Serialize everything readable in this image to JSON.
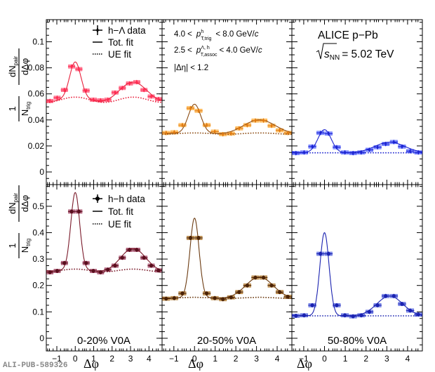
{
  "figure_id": "ALI-PUB-589326",
  "chart_data": [
    {
      "type": "scatter",
      "panel": "top-left",
      "series_label": "h-Λ data",
      "centrality": "",
      "color": "#ff2a50",
      "fit_color": "#e8203c",
      "box_color": "#ff5a7a",
      "x": [
        -1.374,
        -0.982,
        -0.589,
        -0.196,
        0.196,
        0.589,
        0.982,
        1.374,
        1.767,
        2.16,
        2.553,
        2.945,
        3.338,
        3.731,
        4.123,
        4.516
      ],
      "values": [
        0.0545,
        0.057,
        0.063,
        0.081,
        0.079,
        0.0625,
        0.0555,
        0.055,
        0.0555,
        0.061,
        0.0645,
        0.068,
        0.069,
        0.063,
        0.058,
        0.056
      ],
      "ue_level": 0.0555,
      "ue_amp": 0.002,
      "ns_amp": 0.027,
      "ns_sigma": 0.3,
      "as_amp": 0.0115,
      "as_sigma": 0.75,
      "ylim": [
        -0.0097,
        0.117
      ],
      "yticks": [
        0,
        0.02,
        0.04,
        0.06,
        0.08,
        0.1
      ],
      "ytick_labels": [
        "0",
        "0.02",
        "0.04",
        "0.06",
        "0.08",
        "0.1"
      ]
    },
    {
      "type": "scatter",
      "panel": "top-middle",
      "series_label": "h-Λ data",
      "centrality": "",
      "color": "#e07a10",
      "fit_color": "#8b4a10",
      "box_color": "#ffb040",
      "x": [
        -1.374,
        -0.982,
        -0.589,
        -0.196,
        0.196,
        0.589,
        0.982,
        1.374,
        1.767,
        2.16,
        2.553,
        2.945,
        3.338,
        3.731,
        4.123,
        4.516
      ],
      "values": [
        0.03,
        0.0305,
        0.036,
        0.049,
        0.047,
        0.036,
        0.031,
        0.029,
        0.0295,
        0.0335,
        0.036,
        0.0395,
        0.0395,
        0.0355,
        0.032,
        0.03
      ],
      "ue_level": 0.0295,
      "ue_amp": 0.0005,
      "ns_amp": 0.022,
      "ns_sigma": 0.3,
      "as_amp": 0.01,
      "as_sigma": 0.78,
      "ylim": [
        -0.0097,
        0.117
      ],
      "yticks": [
        0,
        0.02,
        0.04,
        0.06,
        0.08,
        0.1
      ],
      "ytick_labels": []
    },
    {
      "type": "scatter",
      "panel": "top-right",
      "series_label": "h-Λ data",
      "centrality": "",
      "color": "#1a22d0",
      "fit_color": "#1a22d0",
      "box_color": "#5a6aff",
      "x": [
        -1.374,
        -0.982,
        -0.589,
        -0.196,
        0.196,
        0.589,
        0.982,
        1.374,
        1.767,
        2.16,
        2.553,
        2.945,
        3.338,
        3.731,
        4.123,
        4.516
      ],
      "values": [
        0.0145,
        0.015,
        0.0195,
        0.03,
        0.0295,
        0.019,
        0.015,
        0.0145,
        0.015,
        0.017,
        0.019,
        0.0215,
        0.023,
        0.0195,
        0.016,
        0.015
      ],
      "ue_level": 0.0147,
      "ue_amp": 0.0,
      "ns_amp": 0.0178,
      "ns_sigma": 0.32,
      "as_amp": 0.0082,
      "as_sigma": 0.72,
      "ylim": [
        -0.0097,
        0.117
      ],
      "yticks": [
        0,
        0.02,
        0.04,
        0.06,
        0.08,
        0.1
      ],
      "ytick_labels": []
    },
    {
      "type": "scatter",
      "panel": "bottom-left",
      "series_label": "h-h data",
      "centrality": "0-20% V0A",
      "color": "#5a0f1e",
      "fit_color": "#7a1a2a",
      "box_color": "#a04060",
      "x": [
        -1.374,
        -0.982,
        -0.589,
        -0.196,
        0.196,
        0.589,
        0.982,
        1.374,
        1.767,
        2.16,
        2.553,
        2.945,
        3.338,
        3.731,
        4.123,
        4.516
      ],
      "values": [
        0.25,
        0.255,
        0.285,
        0.48,
        0.48,
        0.285,
        0.255,
        0.25,
        0.26,
        0.275,
        0.305,
        0.335,
        0.335,
        0.305,
        0.275,
        0.257
      ],
      "ue_level": 0.257,
      "ue_amp": 0.005,
      "ns_amp": 0.29,
      "ns_sigma": 0.24,
      "as_amp": 0.078,
      "as_sigma": 0.68,
      "ylim": [
        -0.048,
        0.582
      ],
      "yticks": [
        0,
        0.1,
        0.2,
        0.3,
        0.4,
        0.5
      ],
      "ytick_labels": [
        "0",
        "0.1",
        "0.2",
        "0.3",
        "0.4",
        "0.5"
      ]
    },
    {
      "type": "scatter",
      "panel": "bottom-middle",
      "series_label": "h-h data",
      "centrality": "20-50% V0A",
      "color": "#4a2206",
      "fit_color": "#6b3a10",
      "box_color": "#b07a30",
      "x": [
        -1.374,
        -0.982,
        -0.589,
        -0.196,
        0.196,
        0.589,
        0.982,
        1.374,
        1.767,
        2.16,
        2.553,
        2.945,
        3.338,
        3.731,
        4.123,
        4.516
      ],
      "values": [
        0.15,
        0.152,
        0.17,
        0.38,
        0.38,
        0.17,
        0.152,
        0.148,
        0.155,
        0.175,
        0.2,
        0.23,
        0.23,
        0.2,
        0.175,
        0.157
      ],
      "ue_level": 0.153,
      "ue_amp": 0.002,
      "ns_amp": 0.3,
      "ns_sigma": 0.22,
      "as_amp": 0.077,
      "as_sigma": 0.66,
      "ylim": [
        -0.048,
        0.582
      ],
      "yticks": [
        0,
        0.1,
        0.2,
        0.3,
        0.4,
        0.5
      ],
      "ytick_labels": []
    },
    {
      "type": "scatter",
      "panel": "bottom-right",
      "series_label": "h-h data",
      "centrality": "50-80% V0A",
      "color": "#1a22b0",
      "fit_color": "#1a22b0",
      "box_color": "#5a6ae0",
      "x": [
        -1.374,
        -0.982,
        -0.589,
        -0.196,
        0.196,
        0.589,
        0.982,
        1.374,
        1.767,
        2.16,
        2.553,
        2.945,
        3.338,
        3.731,
        4.123,
        4.516
      ],
      "values": [
        0.085,
        0.087,
        0.125,
        0.32,
        0.32,
        0.125,
        0.087,
        0.083,
        0.087,
        0.1,
        0.125,
        0.16,
        0.16,
        0.13,
        0.105,
        0.09
      ],
      "ue_level": 0.085,
      "ue_amp": 0.0,
      "ns_amp": 0.315,
      "ns_sigma": 0.22,
      "as_amp": 0.075,
      "as_sigma": 0.62,
      "ylim": [
        -0.048,
        0.582
      ],
      "yticks": [
        0,
        0.1,
        0.2,
        0.3,
        0.4,
        0.5
      ],
      "ytick_labels": []
    }
  ],
  "xaxis": {
    "label": "Δφ",
    "xlim": [
      -1.571,
      4.712
    ],
    "ticks": [
      -1,
      0,
      1,
      2,
      3,
      4
    ],
    "tick_labels": [
      "−1",
      "0",
      "1",
      "2",
      "3",
      "4"
    ]
  },
  "yaxis": {
    "numerator": "dN",
    "numerator_sub": "pair",
    "denominator": "dΔφ",
    "prefactor_num": "1",
    "prefactor_den": "N",
    "prefactor_den_sub": "trig"
  },
  "legend_top": {
    "data": "h−Λ data",
    "tot": "Tot. fit",
    "ue": "UE fit"
  },
  "legend_bottom": {
    "data": "h−h data",
    "tot": "Tot. fit",
    "ue": "UE fit"
  },
  "kinematics": {
    "trig_lo": "4.0 <",
    "trig_p": "p",
    "trig_sup": "h",
    "trig_sub": "T,trig",
    "trig_hi": "< 8.0 GeV/",
    "trig_c": "c",
    "assoc_lo": "2.5 <",
    "assoc_p": "p",
    "assoc_sup": "Λ, h",
    "assoc_sub": "T,assoc",
    "assoc_hi": "< 4.0 GeV/",
    "assoc_c": "c",
    "eta_cut": "|Δη| < 1.2"
  },
  "experiment": {
    "name": "ALICE p−Pb",
    "energy_sym": "s",
    "energy_sub": "NN",
    "energy_val": "= 5.02 TeV"
  }
}
